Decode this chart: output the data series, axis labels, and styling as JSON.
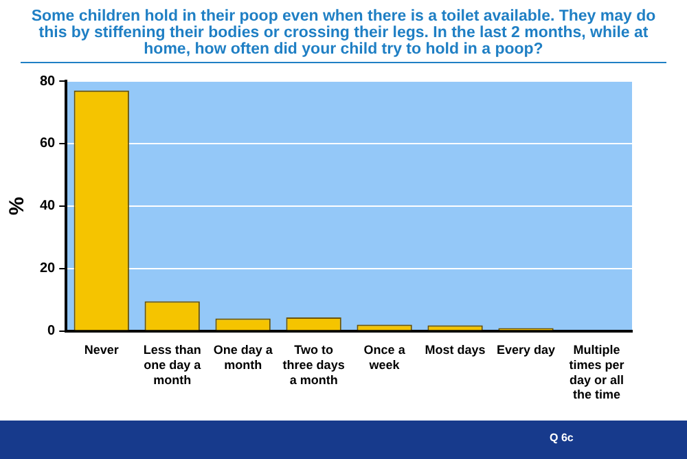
{
  "chart_data": {
    "type": "bar",
    "title": "Some children hold in their poop even when there is a toilet available. They may do this by stiffening their bodies or crossing their legs. In the last 2 months, while at home, how often did your child try to hold in a poop?",
    "ylabel": "%",
    "categories": [
      "Never",
      "Less than one day a month",
      "One day a month",
      "Two to three days a month",
      "Once a week",
      "Most days",
      "Every day",
      "Multiple times per day or all the time"
    ],
    "values": [
      77,
      9.5,
      4,
      4.3,
      2,
      1.8,
      0.9,
      0
    ],
    "color": "#f5c400",
    "ylim": [
      0,
      80
    ],
    "yticks": [
      0,
      20,
      40,
      60,
      80
    ],
    "grid": "y",
    "legend": false,
    "annotations": [
      "Q 6c"
    ]
  }
}
